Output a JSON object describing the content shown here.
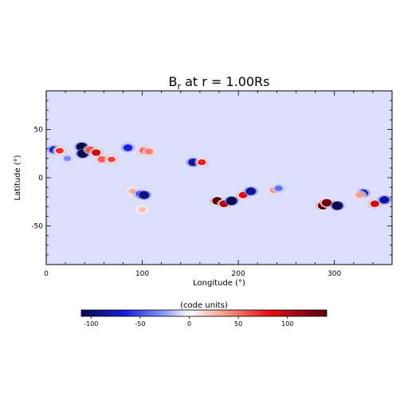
{
  "chart_data": {
    "type": "heatmap",
    "title": "B$_r$ at r = 1.00Rs",
    "title_main": "B",
    "title_sub": "r",
    "title_rest": " at r = 1.00Rs",
    "xlabel": "Longitude (°)",
    "ylabel": "Latitude (°)",
    "xlim": [
      0,
      360
    ],
    "ylim": [
      -90,
      90
    ],
    "xticks": [
      0,
      100,
      200,
      300
    ],
    "yticks": [
      -50,
      0,
      50
    ],
    "background_value": -8,
    "colorbar": {
      "label": "(code units)",
      "range": [
        -110,
        140
      ],
      "ticks": [
        -100,
        -50,
        0,
        50,
        100
      ]
    },
    "features": [
      {
        "lon": 8,
        "lat": 29,
        "value": -70
      },
      {
        "lon": 14,
        "lat": 28,
        "value": 70
      },
      {
        "lon": 22,
        "lat": 20,
        "value": -30
      },
      {
        "lon": 37,
        "lat": 32,
        "value": -110
      },
      {
        "lon": 38,
        "lat": 25,
        "value": -110
      },
      {
        "lon": 46,
        "lat": 29,
        "value": 60
      },
      {
        "lon": 52,
        "lat": 26,
        "value": 95
      },
      {
        "lon": 58,
        "lat": 19,
        "value": 55
      },
      {
        "lon": 68,
        "lat": 19,
        "value": 65
      },
      {
        "lon": 85,
        "lat": 31,
        "value": -65
      },
      {
        "lon": 102,
        "lat": 28,
        "value": 60
      },
      {
        "lon": 107,
        "lat": 27,
        "value": 45
      },
      {
        "lon": 153,
        "lat": 16,
        "value": -85
      },
      {
        "lon": 162,
        "lat": 16,
        "value": 75
      },
      {
        "lon": 90,
        "lat": -14,
        "value": 30
      },
      {
        "lon": 98,
        "lat": -17,
        "value": -60
      },
      {
        "lon": 102,
        "lat": -18,
        "value": -95
      },
      {
        "lon": 100,
        "lat": -33,
        "value": 25
      },
      {
        "lon": 178,
        "lat": -24,
        "value": 140
      },
      {
        "lon": 185,
        "lat": -27,
        "value": 100
      },
      {
        "lon": 193,
        "lat": -24,
        "value": -110
      },
      {
        "lon": 205,
        "lat": -18,
        "value": 85
      },
      {
        "lon": 213,
        "lat": -14,
        "value": -90
      },
      {
        "lon": 237,
        "lat": -13,
        "value": 40
      },
      {
        "lon": 242,
        "lat": -11,
        "value": -40
      },
      {
        "lon": 288,
        "lat": -29,
        "value": 140
      },
      {
        "lon": 292,
        "lat": -26,
        "value": 130
      },
      {
        "lon": 303,
        "lat": -29,
        "value": -110
      },
      {
        "lon": 330,
        "lat": -16,
        "value": -80
      },
      {
        "lon": 326,
        "lat": -18,
        "value": 35
      },
      {
        "lon": 342,
        "lat": -27,
        "value": 90
      },
      {
        "lon": 352,
        "lat": -23,
        "value": -85
      }
    ]
  }
}
